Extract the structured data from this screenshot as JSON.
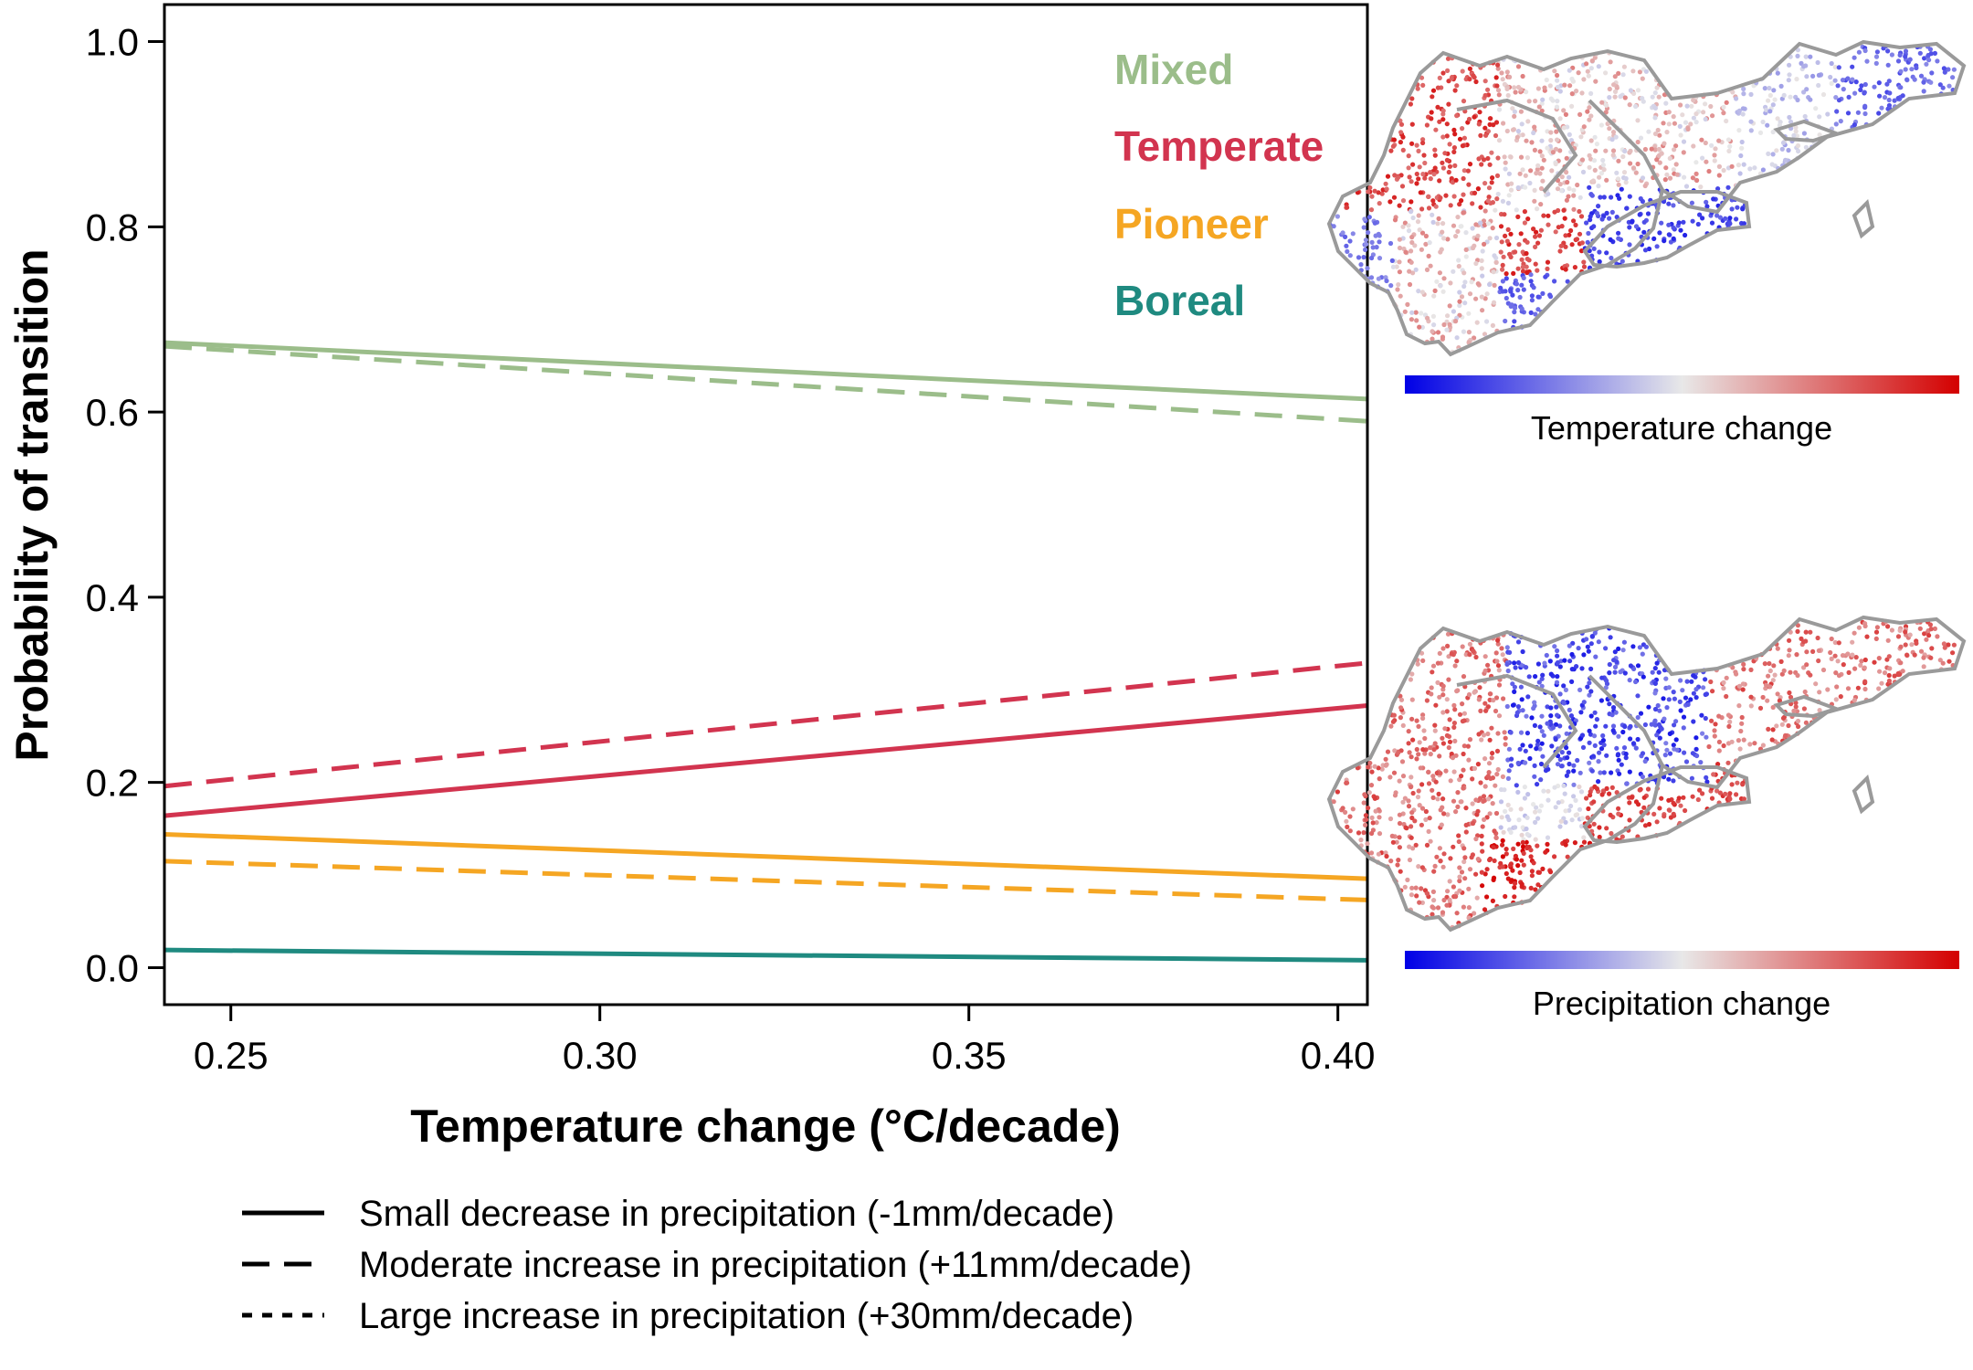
{
  "chart_data": {
    "type": "line",
    "title": "",
    "xlabel": "Temperature change (°C/decade)",
    "ylabel": "Probability of transition",
    "xlim": [
      0.241,
      0.404
    ],
    "ylim": [
      -0.04,
      1.04
    ],
    "xticks": [
      0.25,
      0.3,
      0.35,
      0.4
    ],
    "xtick_labels": [
      "0.25",
      "0.30",
      "0.35",
      "0.40"
    ],
    "yticks": [
      0.0,
      0.2,
      0.4,
      0.6,
      0.8,
      1.0
    ],
    "ytick_labels": [
      "0.0",
      "0.2",
      "0.4",
      "0.6",
      "0.8",
      "1.0"
    ],
    "grid": false,
    "x": [
      0.241,
      0.404
    ],
    "series": [
      {
        "name": "Mixed",
        "scenario": "Small decrease in precipitation (-1mm/decade)",
        "style": "solid",
        "color": "#9bbd8a",
        "values": [
          0.675,
          0.614
        ]
      },
      {
        "name": "Mixed",
        "scenario": "Moderate increase in precipitation (+11mm/decade)",
        "style": "dashed",
        "color": "#9bbd8a",
        "values": [
          0.671,
          0.59
        ]
      },
      {
        "name": "Temperate",
        "scenario": "Moderate increase in precipitation (+11mm/decade)",
        "style": "dashed",
        "color": "#d2344f",
        "values": [
          0.196,
          0.329
        ]
      },
      {
        "name": "Temperate",
        "scenario": "Small decrease in precipitation (-1mm/decade)",
        "style": "solid",
        "color": "#d2344f",
        "values": [
          0.164,
          0.283
        ]
      },
      {
        "name": "Pioneer",
        "scenario": "Small decrease in precipitation (-1mm/decade)",
        "style": "solid",
        "color": "#f5a623",
        "values": [
          0.144,
          0.096
        ]
      },
      {
        "name": "Pioneer",
        "scenario": "Moderate increase in precipitation (+11mm/decade)",
        "style": "dashed",
        "color": "#f5a623",
        "values": [
          0.115,
          0.073
        ]
      },
      {
        "name": "Boreal",
        "scenario": "Small decrease in precipitation (-1mm/decade)",
        "style": "solid",
        "color": "#1f8a80",
        "values": [
          0.019,
          0.008
        ]
      }
    ],
    "annotations": [
      {
        "text": "Mixed",
        "color": "#9bbd8a"
      },
      {
        "text": "Temperate",
        "color": "#d2344f"
      },
      {
        "text": "Pioneer",
        "color": "#f5a623"
      },
      {
        "text": "Boreal",
        "color": "#1f8a80"
      }
    ],
    "legend": {
      "placement": "bottom",
      "entries": [
        {
          "label": "Small decrease in precipitation (-1mm/decade)",
          "style": "solid"
        },
        {
          "label": "Moderate increase in precipitation (+11mm/decade)",
          "style": "dashed"
        },
        {
          "label": "Large increase in precipitation (+30mm/decade)",
          "style": "dotted"
        }
      ]
    },
    "maps": [
      {
        "name": "temperature-map",
        "colorbar_label": "Temperature change",
        "colormap": [
          "#0000e6",
          "#e8e8e8",
          "#d40000"
        ]
      },
      {
        "name": "precipitation-map",
        "colorbar_label": "Precipitation change",
        "colormap": [
          "#0000e6",
          "#e8e8e8",
          "#d40000"
        ]
      }
    ]
  }
}
